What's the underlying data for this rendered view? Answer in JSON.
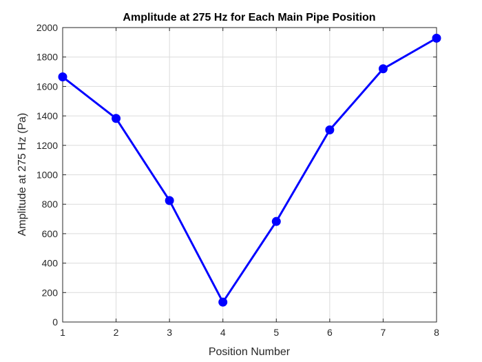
{
  "chart_data": {
    "type": "line",
    "title": "Amplitude at 275 Hz for Each Main Pipe Position",
    "xlabel": "Position Number",
    "ylabel": "Amplitude at 275 Hz (Pa)",
    "xlim": [
      1,
      8
    ],
    "ylim": [
      0,
      2000
    ],
    "xticks": [
      1,
      2,
      3,
      4,
      5,
      6,
      7,
      8
    ],
    "yticks": [
      0,
      200,
      400,
      600,
      800,
      1000,
      1200,
      1400,
      1600,
      1800,
      2000
    ],
    "grid": true,
    "series": [
      {
        "x": [
          1,
          2,
          3,
          4,
          5,
          6,
          7,
          8
        ],
        "values": [
          1665,
          1383,
          825,
          135,
          683,
          1305,
          1720,
          1928
        ],
        "color": "#0000ff",
        "marker": "circle"
      }
    ]
  }
}
